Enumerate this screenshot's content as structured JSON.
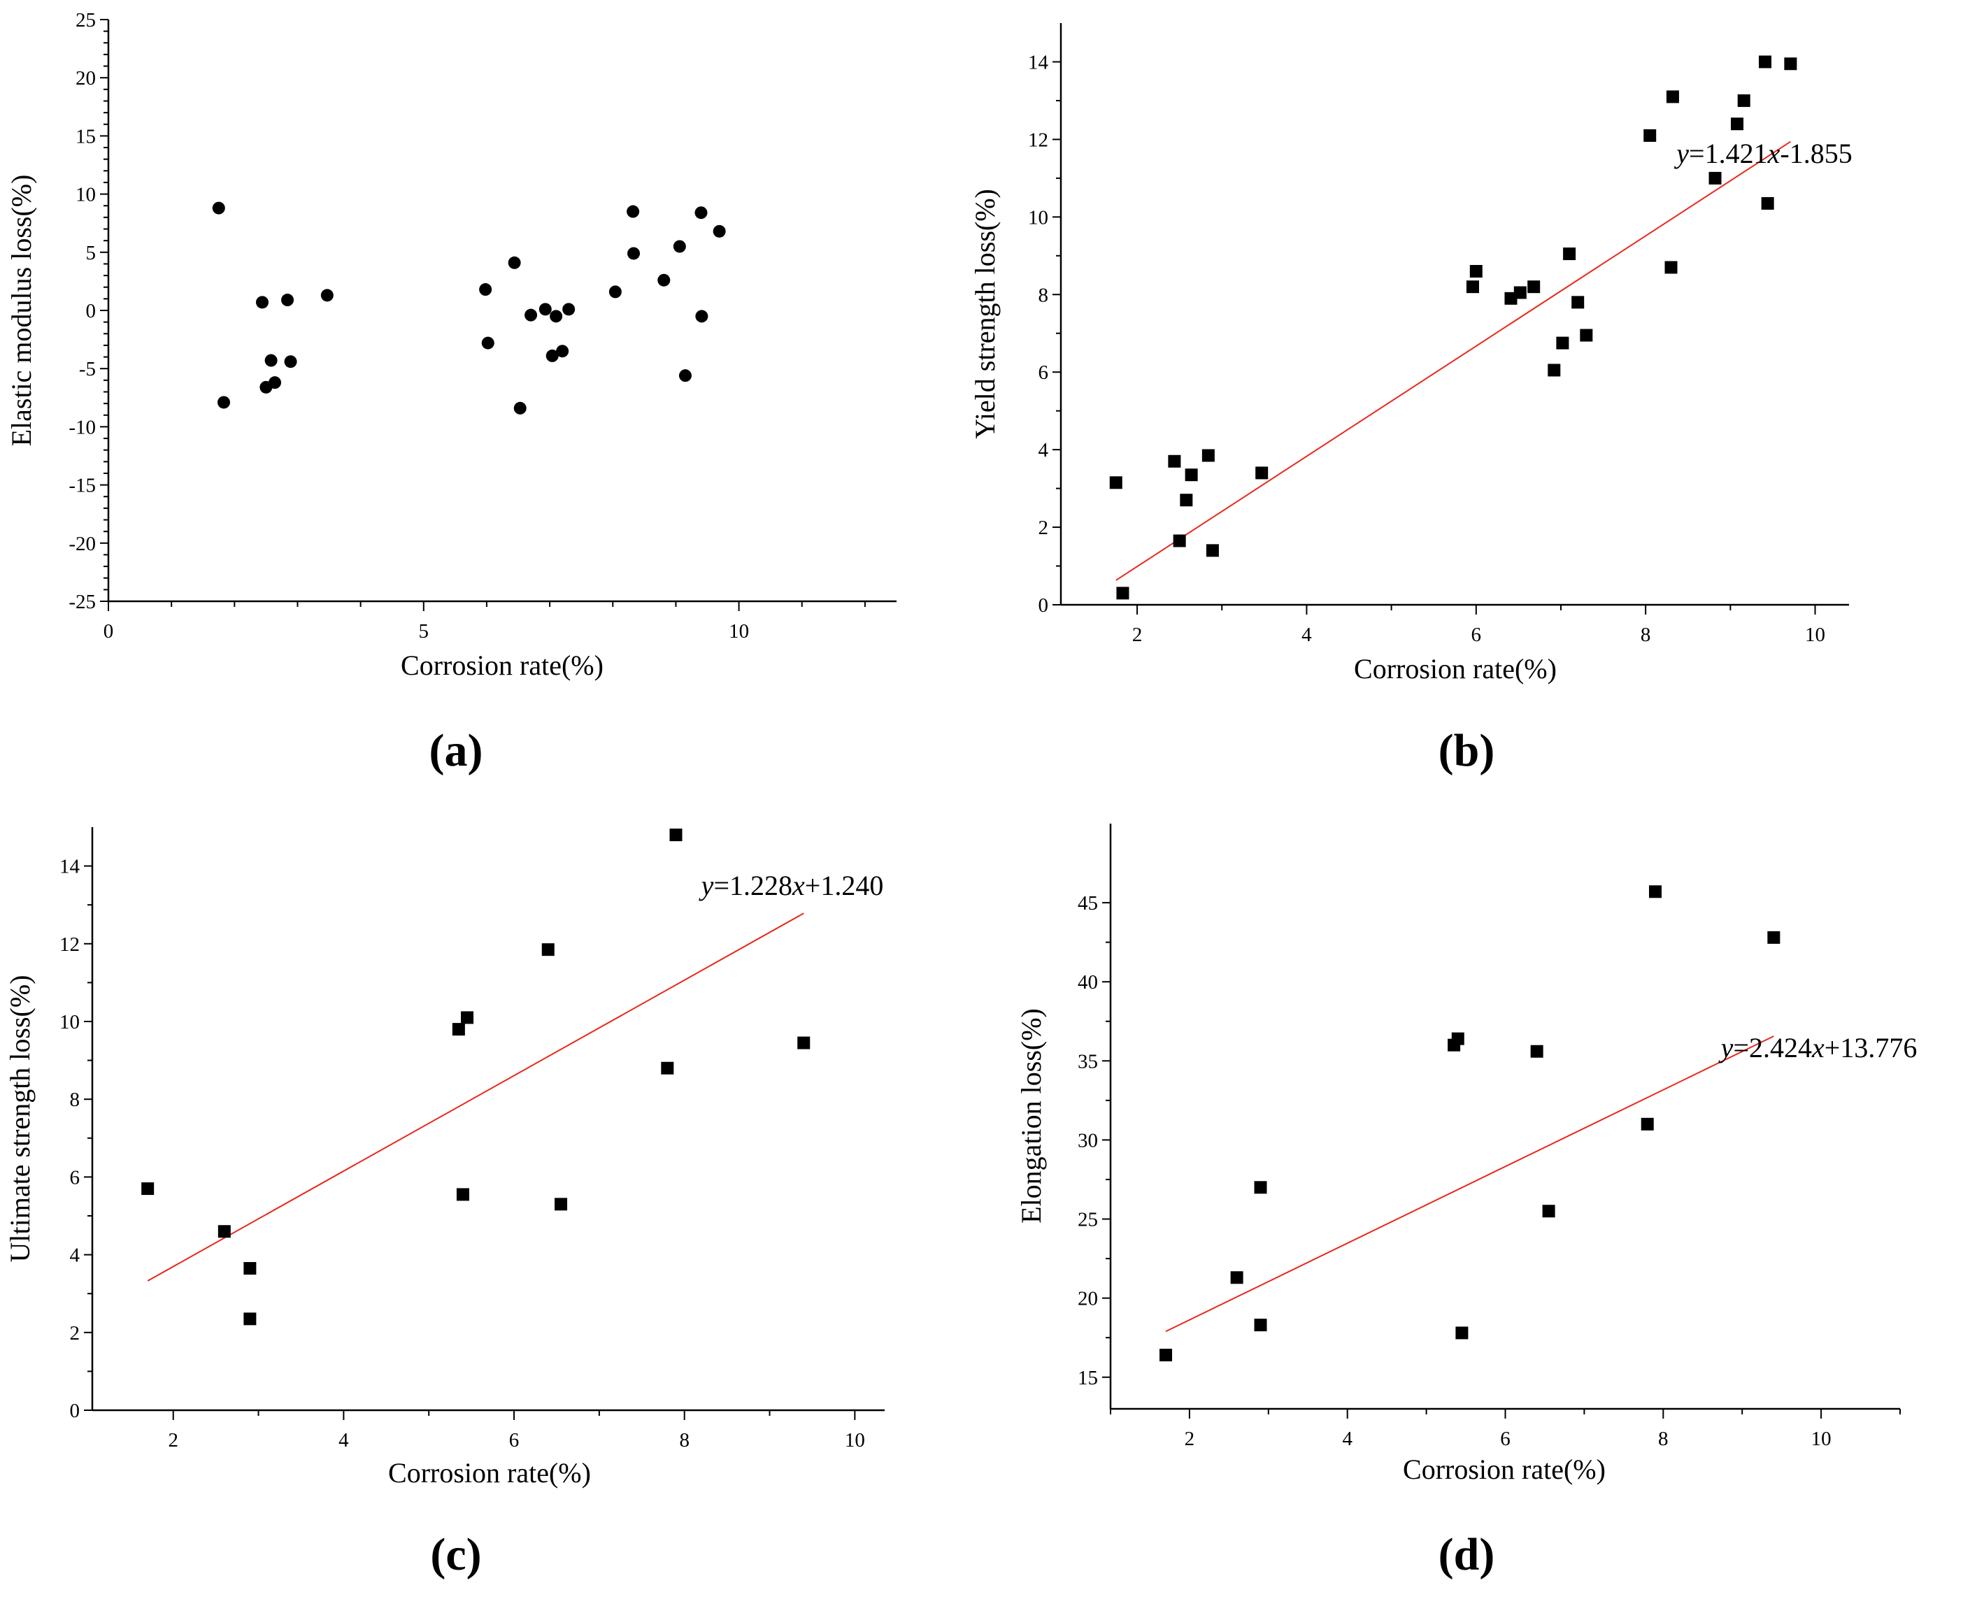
{
  "chart_data": [
    {
      "id": "a",
      "type": "scatter",
      "panel_label": "(a)",
      "xlabel": "Corrosion rate(%)",
      "ylabel": "Elastic modulus loss(%)",
      "xlim": [
        0,
        12.5
      ],
      "ylim": [
        -25,
        25
      ],
      "xticks": [
        0,
        5,
        10
      ],
      "yticks": [
        -25,
        -20,
        -15,
        -10,
        -5,
        0,
        5,
        10,
        15,
        20,
        25
      ],
      "marker": "circle",
      "points": [
        [
          1.75,
          8.8
        ],
        [
          1.83,
          -7.9
        ],
        [
          2.44,
          0.7
        ],
        [
          2.5,
          -6.6
        ],
        [
          2.58,
          -4.3
        ],
        [
          2.64,
          -6.2
        ],
        [
          2.84,
          0.9
        ],
        [
          2.89,
          -4.4
        ],
        [
          3.47,
          1.3
        ],
        [
          5.98,
          1.8
        ],
        [
          6.02,
          -2.8
        ],
        [
          6.44,
          4.1
        ],
        [
          6.53,
          -8.4
        ],
        [
          6.7,
          -0.4
        ],
        [
          6.93,
          0.1
        ],
        [
          7.04,
          -3.9
        ],
        [
          7.1,
          -0.5
        ],
        [
          7.2,
          -3.5
        ],
        [
          7.3,
          0.1
        ],
        [
          8.04,
          1.6
        ],
        [
          8.32,
          8.5
        ],
        [
          8.33,
          4.9
        ],
        [
          8.81,
          2.6
        ],
        [
          9.06,
          5.5
        ],
        [
          9.15,
          -5.6
        ],
        [
          9.4,
          8.4
        ],
        [
          9.41,
          -0.5
        ],
        [
          9.69,
          6.8
        ]
      ]
    },
    {
      "id": "b",
      "type": "scatter",
      "panel_label": "(b)",
      "xlabel": "Corrosion rate(%)",
      "ylabel": "Yield strength loss(%)",
      "xlim": [
        1.1,
        10.4
      ],
      "ylim": [
        0,
        15
      ],
      "xticks": [
        2,
        4,
        6,
        8,
        10
      ],
      "yticks": [
        0,
        2,
        4,
        6,
        8,
        10,
        12,
        14
      ],
      "marker": "square",
      "points": [
        [
          1.75,
          3.15
        ],
        [
          1.83,
          0.3
        ],
        [
          2.44,
          3.7
        ],
        [
          2.5,
          1.65
        ],
        [
          2.58,
          2.7
        ],
        [
          2.64,
          3.35
        ],
        [
          2.84,
          3.85
        ],
        [
          2.89,
          1.4
        ],
        [
          3.47,
          3.4
        ],
        [
          5.96,
          8.2
        ],
        [
          6.0,
          8.6
        ],
        [
          6.41,
          7.9
        ],
        [
          6.52,
          8.05
        ],
        [
          6.68,
          8.2
        ],
        [
          6.92,
          6.05
        ],
        [
          7.02,
          6.75
        ],
        [
          7.1,
          9.05
        ],
        [
          7.2,
          7.8
        ],
        [
          7.3,
          6.95
        ],
        [
          8.05,
          12.1
        ],
        [
          8.3,
          8.7
        ],
        [
          8.32,
          13.1
        ],
        [
          8.82,
          11.0
        ],
        [
          9.08,
          12.4
        ],
        [
          9.16,
          13.0
        ],
        [
          9.41,
          14.0
        ],
        [
          9.44,
          10.35
        ],
        [
          9.71,
          13.95
        ]
      ],
      "fit": {
        "slope": 1.421,
        "intercept": -1.855,
        "x_range": [
          1.75,
          9.71
        ]
      },
      "equation": {
        "y": "y",
        "slope_text": "=1.421",
        "x": "x",
        "intercept_text": "-1.855"
      }
    },
    {
      "id": "c",
      "type": "scatter",
      "panel_label": "(c)",
      "xlabel": "Corrosion rate(%)",
      "ylabel": "Ultimate strength loss(%)",
      "xlim": [
        1.05,
        10.35
      ],
      "ylim": [
        0,
        15
      ],
      "xticks": [
        2,
        4,
        6,
        8,
        10
      ],
      "yticks": [
        0,
        2,
        4,
        6,
        8,
        10,
        12,
        14
      ],
      "marker": "square",
      "points": [
        [
          1.7,
          5.7
        ],
        [
          2.6,
          4.6
        ],
        [
          2.9,
          3.65
        ],
        [
          2.9,
          2.35
        ],
        [
          5.35,
          9.8
        ],
        [
          5.4,
          5.55
        ],
        [
          5.45,
          10.1
        ],
        [
          6.4,
          11.85
        ],
        [
          6.55,
          5.3
        ],
        [
          7.8,
          8.8
        ],
        [
          7.9,
          14.8
        ],
        [
          9.4,
          9.45
        ]
      ],
      "fit": {
        "slope": 1.228,
        "intercept": 1.24,
        "x_range": [
          1.7,
          9.4
        ]
      },
      "equation": {
        "y": "y",
        "slope_text": "=1.228",
        "x": "x",
        "intercept_text": "+1.240"
      }
    },
    {
      "id": "d",
      "type": "scatter",
      "panel_label": "(d)",
      "xlabel": "Corrosion rate(%)",
      "ylabel": "Elongation loss(%)",
      "xlim": [
        1.0,
        11.0
      ],
      "ylim": [
        13,
        50
      ],
      "xticks": [
        2,
        4,
        6,
        8,
        10
      ],
      "yticks": [
        15,
        20,
        25,
        30,
        35,
        40,
        45
      ],
      "marker": "square",
      "points": [
        [
          1.7,
          16.4
        ],
        [
          2.6,
          21.3
        ],
        [
          2.9,
          18.3
        ],
        [
          2.9,
          27.0
        ],
        [
          5.35,
          36.0
        ],
        [
          5.4,
          36.4
        ],
        [
          5.45,
          17.8
        ],
        [
          6.4,
          35.6
        ],
        [
          6.55,
          25.5
        ],
        [
          7.8,
          31.0
        ],
        [
          7.9,
          45.7
        ],
        [
          9.4,
          42.8
        ]
      ],
      "fit": {
        "slope": 2.424,
        "intercept": 13.776,
        "x_range": [
          1.7,
          9.4
        ]
      },
      "equation": {
        "y": "y",
        "slope_text": "=2.424",
        "x": "x",
        "intercept_text": "+13.776"
      }
    }
  ]
}
